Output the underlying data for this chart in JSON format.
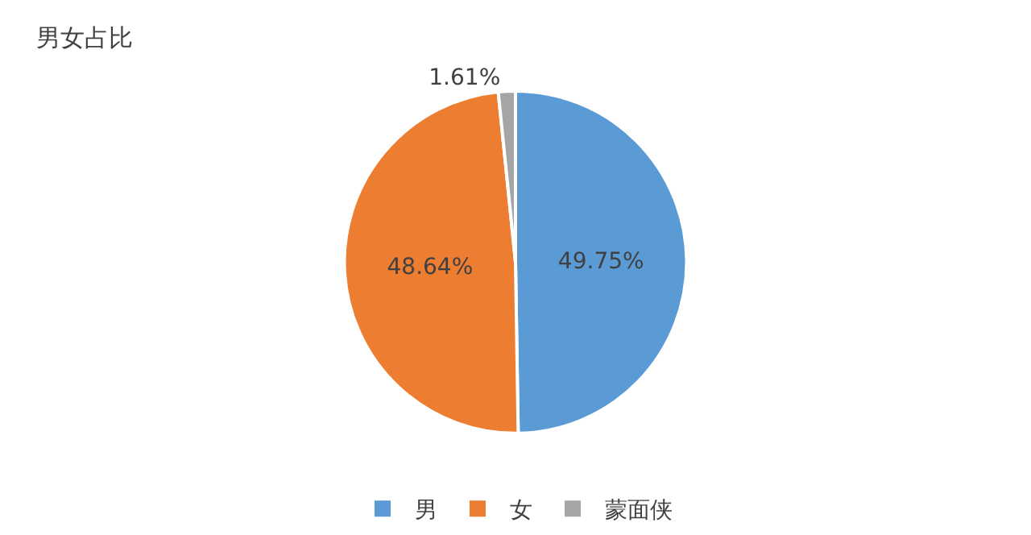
{
  "chart_data": {
    "type": "pie",
    "title": "男女占比",
    "categories": [
      "男",
      "女",
      "蒙面侠"
    ],
    "values": [
      49.75,
      48.64,
      1.61
    ],
    "colors": [
      "#5b9bd5",
      "#ed7d31",
      "#a5a5a5"
    ],
    "value_labels": [
      "49.75%",
      "48.64%",
      "1.61%"
    ],
    "legend": "bottom"
  }
}
